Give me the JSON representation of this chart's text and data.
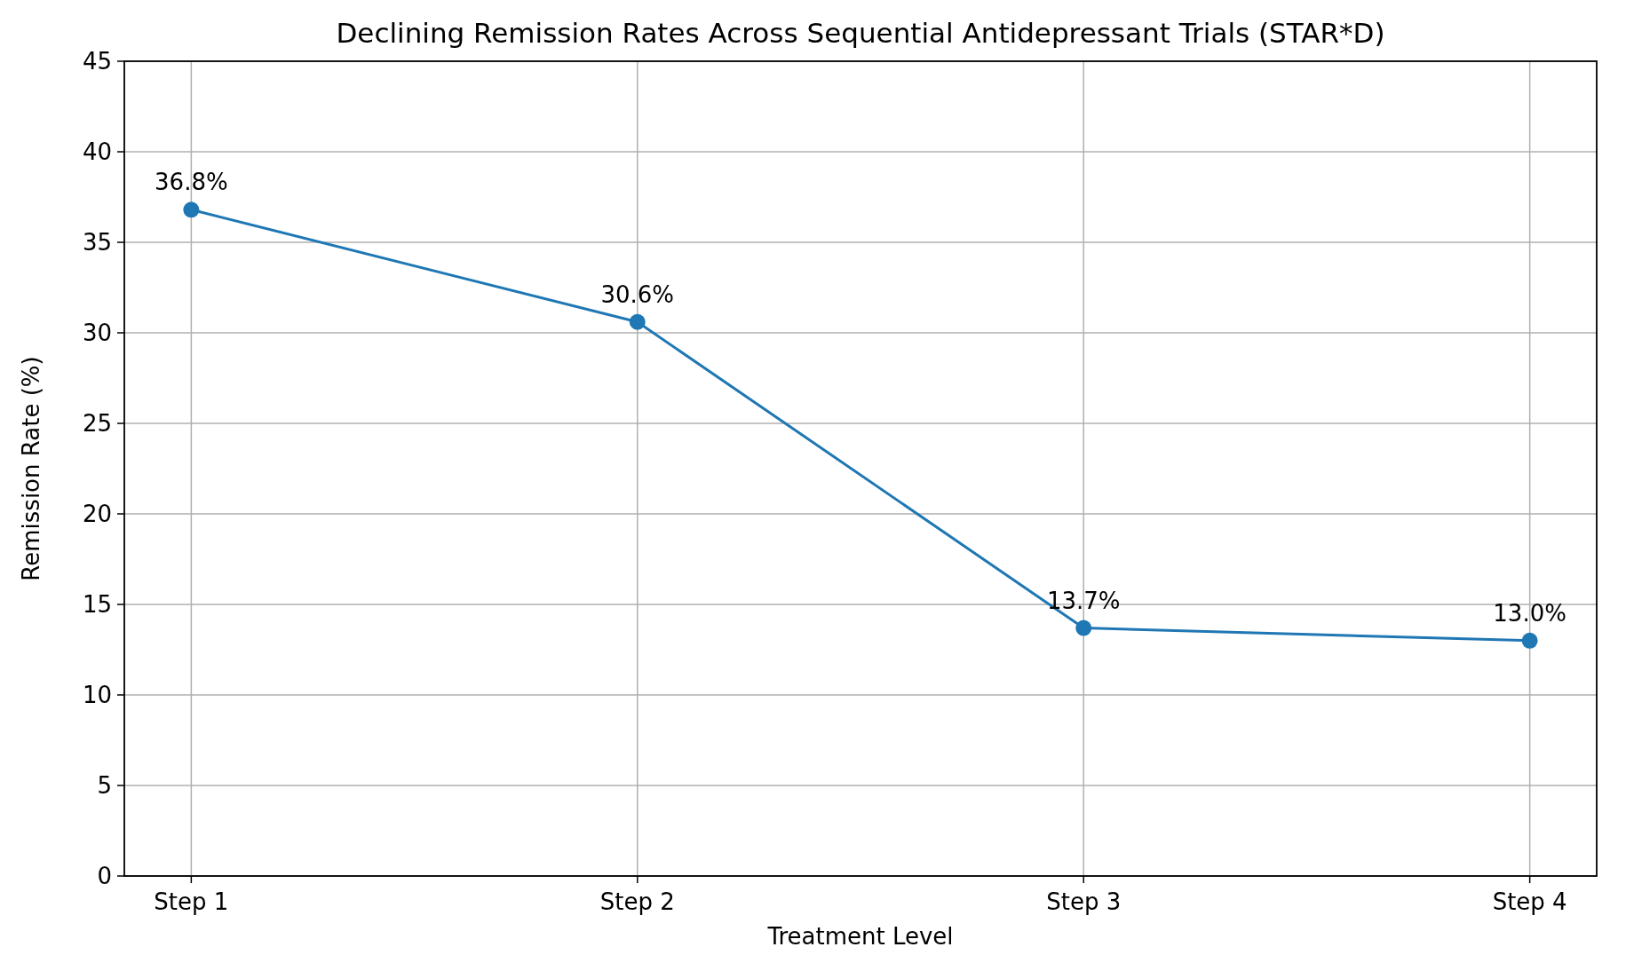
{
  "chart_data": {
    "type": "line",
    "title": "Declining Remission Rates Across Sequential Antidepressant Trials (STAR*D)",
    "xlabel": "Treatment Level",
    "ylabel": "Remission Rate (%)",
    "categories": [
      "Step 1",
      "Step 2",
      "Step 3",
      "Step 4"
    ],
    "series": [
      {
        "color": "#1f77b4",
        "values": [
          36.8,
          30.6,
          13.7,
          13.0
        ],
        "value_labels": [
          "36.8%",
          "30.6%",
          "13.7%",
          "13.0%"
        ]
      }
    ],
    "ylim": [
      0,
      45
    ],
    "yticks": [
      0,
      5,
      10,
      15,
      20,
      25,
      30,
      35,
      40,
      45
    ],
    "grid": true,
    "marker": "circle",
    "line_style": "solid"
  }
}
